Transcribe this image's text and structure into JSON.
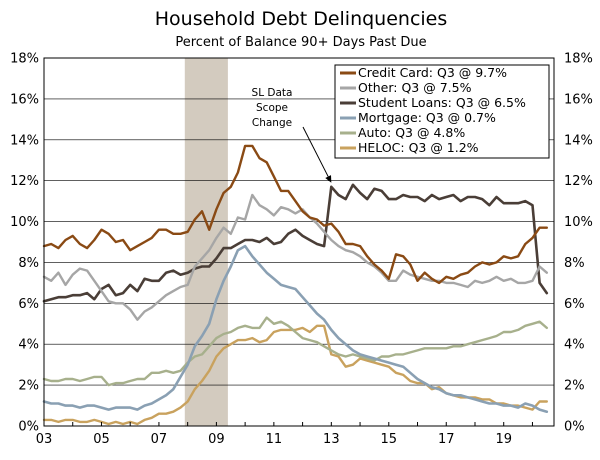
{
  "chart_data": {
    "type": "line",
    "title": "Household Debt Delinquencies",
    "subtitle": "Percent of Balance 90+ Days Past Due",
    "xlim": [
      2003.0,
      2020.75
    ],
    "ylim": [
      0,
      18
    ],
    "y_ticks": [
      0,
      2,
      4,
      6,
      8,
      10,
      12,
      14,
      16,
      18
    ],
    "y_tick_labels": [
      "0%",
      "2%",
      "4%",
      "6%",
      "8%",
      "10%",
      "12%",
      "14%",
      "16%",
      "18%"
    ],
    "x_ticks": [
      2003,
      2005,
      2007,
      2009,
      2011,
      2013,
      2015,
      2017,
      2019
    ],
    "x_tick_labels": [
      "03",
      "05",
      "07",
      "09",
      "11",
      "13",
      "15",
      "17",
      "19"
    ],
    "recession": [
      2007.9,
      2009.4
    ],
    "annotation": {
      "lines": [
        "SL Data",
        "Scope",
        "Change"
      ],
      "arrow_to": [
        2013.0,
        11.7
      ]
    },
    "legend_position": "top-right",
    "series": [
      {
        "name": "Credit Card",
        "legend": "Credit Card: Q3 @ 9.7%",
        "color": "#8a4a14",
        "width": 2.4,
        "x": [
          2003.0,
          2003.25,
          2003.5,
          2003.75,
          2004.0,
          2004.25,
          2004.5,
          2004.75,
          2005.0,
          2005.25,
          2005.5,
          2005.75,
          2006.0,
          2006.25,
          2006.5,
          2006.75,
          2007.0,
          2007.25,
          2007.5,
          2007.75,
          2008.0,
          2008.25,
          2008.5,
          2008.75,
          2009.0,
          2009.25,
          2009.5,
          2009.75,
          2010.0,
          2010.25,
          2010.5,
          2010.75,
          2011.0,
          2011.25,
          2011.5,
          2011.75,
          2012.0,
          2012.25,
          2012.5,
          2012.75,
          2013.0,
          2013.25,
          2013.5,
          2013.75,
          2014.0,
          2014.25,
          2014.5,
          2014.75,
          2015.0,
          2015.25,
          2015.5,
          2015.75,
          2016.0,
          2016.25,
          2016.5,
          2016.75,
          2017.0,
          2017.25,
          2017.5,
          2017.75,
          2018.0,
          2018.25,
          2018.5,
          2018.75,
          2019.0,
          2019.25,
          2019.5,
          2019.75,
          2020.0,
          2020.25,
          2020.5
        ],
        "y": [
          8.8,
          8.9,
          8.7,
          9.1,
          9.3,
          8.9,
          8.7,
          9.1,
          9.6,
          9.4,
          9.0,
          9.1,
          8.6,
          8.8,
          9.0,
          9.2,
          9.6,
          9.6,
          9.4,
          9.4,
          9.5,
          10.1,
          10.5,
          9.6,
          10.6,
          11.4,
          11.7,
          12.4,
          13.7,
          13.7,
          13.1,
          12.9,
          12.2,
          11.5,
          11.5,
          11.0,
          10.5,
          10.2,
          10.1,
          9.8,
          9.9,
          9.5,
          8.9,
          8.9,
          8.8,
          8.3,
          7.9,
          7.6,
          7.2,
          8.4,
          8.3,
          7.9,
          7.1,
          7.5,
          7.2,
          7.0,
          7.3,
          7.2,
          7.4,
          7.5,
          7.8,
          8.0,
          7.9,
          8.0,
          8.3,
          8.2,
          8.3,
          8.9,
          9.2,
          9.7,
          9.7
        ]
      },
      {
        "name": "Other",
        "legend": "Other: Q3 @ 7.5%",
        "color": "#a6a6a6",
        "width": 2.4,
        "x": [
          2003.0,
          2003.25,
          2003.5,
          2003.75,
          2004.0,
          2004.25,
          2004.5,
          2004.75,
          2005.0,
          2005.25,
          2005.5,
          2005.75,
          2006.0,
          2006.25,
          2006.5,
          2006.75,
          2007.0,
          2007.25,
          2007.5,
          2007.75,
          2008.0,
          2008.25,
          2008.5,
          2008.75,
          2009.0,
          2009.25,
          2009.5,
          2009.75,
          2010.0,
          2010.25,
          2010.5,
          2010.75,
          2011.0,
          2011.25,
          2011.5,
          2011.75,
          2012.0,
          2012.25,
          2012.5,
          2012.75,
          2013.0,
          2013.25,
          2013.5,
          2013.75,
          2014.0,
          2014.25,
          2014.5,
          2014.75,
          2015.0,
          2015.25,
          2015.5,
          2015.75,
          2016.0,
          2016.25,
          2016.5,
          2016.75,
          2017.0,
          2017.25,
          2017.5,
          2017.75,
          2018.0,
          2018.25,
          2018.5,
          2018.75,
          2019.0,
          2019.25,
          2019.5,
          2019.75,
          2020.0,
          2020.25,
          2020.5
        ],
        "y": [
          7.3,
          7.1,
          7.5,
          6.9,
          7.4,
          7.7,
          7.6,
          7.1,
          6.6,
          6.1,
          6.0,
          6.0,
          5.7,
          5.2,
          5.6,
          5.8,
          6.1,
          6.4,
          6.6,
          6.8,
          6.9,
          7.8,
          8.2,
          8.6,
          9.2,
          9.7,
          9.4,
          10.2,
          10.1,
          11.3,
          10.8,
          10.6,
          10.3,
          10.7,
          10.6,
          10.4,
          10.6,
          10.2,
          9.9,
          9.5,
          9.1,
          8.8,
          8.6,
          8.5,
          8.3,
          8.0,
          7.8,
          7.5,
          7.1,
          7.1,
          7.6,
          7.4,
          7.3,
          7.2,
          7.1,
          7.1,
          7.0,
          7.0,
          6.9,
          6.8,
          7.1,
          7.0,
          7.1,
          7.3,
          7.1,
          7.2,
          7.0,
          7.0,
          7.1,
          7.8,
          7.5
        ]
      },
      {
        "name": "Student Loans",
        "legend": "Student Loans: Q3 @ 6.5%",
        "color": "#4a3e37",
        "width": 2.6,
        "x": [
          2003.0,
          2003.25,
          2003.5,
          2003.75,
          2004.0,
          2004.25,
          2004.5,
          2004.75,
          2005.0,
          2005.25,
          2005.5,
          2005.75,
          2006.0,
          2006.25,
          2006.5,
          2006.75,
          2007.0,
          2007.25,
          2007.5,
          2007.75,
          2008.0,
          2008.25,
          2008.5,
          2008.75,
          2009.0,
          2009.25,
          2009.5,
          2009.75,
          2010.0,
          2010.25,
          2010.5,
          2010.75,
          2011.0,
          2011.25,
          2011.5,
          2011.75,
          2012.0,
          2012.25,
          2012.5,
          2012.75,
          2013.0,
          2013.25,
          2013.5,
          2013.75,
          2014.0,
          2014.25,
          2014.5,
          2014.75,
          2015.0,
          2015.25,
          2015.5,
          2015.75,
          2016.0,
          2016.25,
          2016.5,
          2016.75,
          2017.0,
          2017.25,
          2017.5,
          2017.75,
          2018.0,
          2018.25,
          2018.5,
          2018.75,
          2019.0,
          2019.25,
          2019.5,
          2019.75,
          2020.0,
          2020.25,
          2020.5
        ],
        "y": [
          6.1,
          6.2,
          6.3,
          6.3,
          6.4,
          6.4,
          6.5,
          6.2,
          6.7,
          6.9,
          6.4,
          6.5,
          6.9,
          6.6,
          7.2,
          7.1,
          7.1,
          7.5,
          7.6,
          7.4,
          7.5,
          7.7,
          7.8,
          7.8,
          8.2,
          8.7,
          8.7,
          8.9,
          9.1,
          9.1,
          9.0,
          9.2,
          8.9,
          9.0,
          9.4,
          9.6,
          9.3,
          9.1,
          8.9,
          8.8,
          11.7,
          11.3,
          11.1,
          11.8,
          11.4,
          11.1,
          11.6,
          11.5,
          11.1,
          11.1,
          11.3,
          11.2,
          11.2,
          11.0,
          11.3,
          11.1,
          11.2,
          11.3,
          11.0,
          11.2,
          11.2,
          11.1,
          10.8,
          11.2,
          10.9,
          10.9,
          10.9,
          11.0,
          10.8,
          7.0,
          6.5
        ]
      },
      {
        "name": "Mortgage",
        "legend": "Mortgage: Q3 @ 0.7%",
        "color": "#8aa0b3",
        "width": 2.6,
        "x": [
          2003.0,
          2003.25,
          2003.5,
          2003.75,
          2004.0,
          2004.25,
          2004.5,
          2004.75,
          2005.0,
          2005.25,
          2005.5,
          2005.75,
          2006.0,
          2006.25,
          2006.5,
          2006.75,
          2007.0,
          2007.25,
          2007.5,
          2007.75,
          2008.0,
          2008.25,
          2008.5,
          2008.75,
          2009.0,
          2009.25,
          2009.5,
          2009.75,
          2010.0,
          2010.25,
          2010.5,
          2010.75,
          2011.0,
          2011.25,
          2011.5,
          2011.75,
          2012.0,
          2012.25,
          2012.5,
          2012.75,
          2013.0,
          2013.25,
          2013.5,
          2013.75,
          2014.0,
          2014.25,
          2014.5,
          2014.75,
          2015.0,
          2015.25,
          2015.5,
          2015.75,
          2016.0,
          2016.25,
          2016.5,
          2016.75,
          2017.0,
          2017.25,
          2017.5,
          2017.75,
          2018.0,
          2018.25,
          2018.5,
          2018.75,
          2019.0,
          2019.25,
          2019.5,
          2019.75,
          2020.0,
          2020.25,
          2020.5
        ],
        "y": [
          1.2,
          1.1,
          1.1,
          1.0,
          1.0,
          0.9,
          1.0,
          1.0,
          0.9,
          0.8,
          0.9,
          0.9,
          0.9,
          0.8,
          1.0,
          1.1,
          1.3,
          1.5,
          1.8,
          2.4,
          3.0,
          3.9,
          4.4,
          5.0,
          6.2,
          7.1,
          7.8,
          8.6,
          8.8,
          8.3,
          7.9,
          7.5,
          7.2,
          6.9,
          6.8,
          6.7,
          6.3,
          5.9,
          5.5,
          5.2,
          4.7,
          4.3,
          4.0,
          3.7,
          3.5,
          3.4,
          3.3,
          3.2,
          3.1,
          3.0,
          2.9,
          2.6,
          2.3,
          2.1,
          1.9,
          1.8,
          1.6,
          1.5,
          1.5,
          1.4,
          1.3,
          1.2,
          1.1,
          1.1,
          1.0,
          1.0,
          0.9,
          1.1,
          1.0,
          0.8,
          0.7
        ]
      },
      {
        "name": "Auto",
        "legend": "Auto: Q3 @ 4.8%",
        "color": "#a7b08c",
        "width": 2.4,
        "x": [
          2003.0,
          2003.25,
          2003.5,
          2003.75,
          2004.0,
          2004.25,
          2004.5,
          2004.75,
          2005.0,
          2005.25,
          2005.5,
          2005.75,
          2006.0,
          2006.25,
          2006.5,
          2006.75,
          2007.0,
          2007.25,
          2007.5,
          2007.75,
          2008.0,
          2008.25,
          2008.5,
          2008.75,
          2009.0,
          2009.25,
          2009.5,
          2009.75,
          2010.0,
          2010.25,
          2010.5,
          2010.75,
          2011.0,
          2011.25,
          2011.5,
          2011.75,
          2012.0,
          2012.25,
          2012.5,
          2012.75,
          2013.0,
          2013.25,
          2013.5,
          2013.75,
          2014.0,
          2014.25,
          2014.5,
          2014.75,
          2015.0,
          2015.25,
          2015.5,
          2015.75,
          2016.0,
          2016.25,
          2016.5,
          2016.75,
          2017.0,
          2017.25,
          2017.5,
          2017.75,
          2018.0,
          2018.25,
          2018.5,
          2018.75,
          2019.0,
          2019.25,
          2019.5,
          2019.75,
          2020.0,
          2020.25,
          2020.5
        ],
        "y": [
          2.3,
          2.2,
          2.2,
          2.3,
          2.3,
          2.2,
          2.3,
          2.4,
          2.4,
          2.0,
          2.1,
          2.1,
          2.2,
          2.3,
          2.3,
          2.6,
          2.6,
          2.7,
          2.6,
          2.7,
          3.1,
          3.4,
          3.5,
          3.9,
          4.3,
          4.5,
          4.6,
          4.8,
          4.9,
          4.8,
          4.8,
          5.3,
          5.0,
          5.1,
          4.9,
          4.6,
          4.3,
          4.2,
          4.1,
          3.9,
          3.7,
          3.5,
          3.4,
          3.5,
          3.4,
          3.3,
          3.2,
          3.4,
          3.4,
          3.5,
          3.5,
          3.6,
          3.7,
          3.8,
          3.8,
          3.8,
          3.8,
          3.9,
          3.9,
          4.0,
          4.1,
          4.2,
          4.3,
          4.4,
          4.6,
          4.6,
          4.7,
          4.9,
          5.0,
          5.1,
          4.8
        ]
      },
      {
        "name": "HELOC",
        "legend": "HELOC: Q3 @ 1.2%",
        "color": "#c9a25e",
        "width": 2.4,
        "x": [
          2003.0,
          2003.25,
          2003.5,
          2003.75,
          2004.0,
          2004.25,
          2004.5,
          2004.75,
          2005.0,
          2005.25,
          2005.5,
          2005.75,
          2006.0,
          2006.25,
          2006.5,
          2006.75,
          2007.0,
          2007.25,
          2007.5,
          2007.75,
          2008.0,
          2008.25,
          2008.5,
          2008.75,
          2009.0,
          2009.25,
          2009.5,
          2009.75,
          2010.0,
          2010.25,
          2010.5,
          2010.75,
          2011.0,
          2011.25,
          2011.5,
          2011.75,
          2012.0,
          2012.25,
          2012.5,
          2012.75,
          2013.0,
          2013.25,
          2013.5,
          2013.75,
          2014.0,
          2014.25,
          2014.5,
          2014.75,
          2015.0,
          2015.25,
          2015.5,
          2015.75,
          2016.0,
          2016.25,
          2016.5,
          2016.75,
          2017.0,
          2017.25,
          2017.5,
          2017.75,
          2018.0,
          2018.25,
          2018.5,
          2018.75,
          2019.0,
          2019.25,
          2019.5,
          2019.75,
          2020.0,
          2020.25,
          2020.5
        ],
        "y": [
          0.3,
          0.3,
          0.2,
          0.3,
          0.3,
          0.2,
          0.2,
          0.3,
          0.2,
          0.1,
          0.2,
          0.1,
          0.2,
          0.1,
          0.3,
          0.4,
          0.6,
          0.6,
          0.7,
          0.9,
          1.2,
          1.8,
          2.2,
          2.7,
          3.4,
          3.8,
          4.0,
          4.2,
          4.2,
          4.3,
          4.1,
          4.2,
          4.6,
          4.7,
          4.7,
          4.7,
          4.8,
          4.6,
          4.9,
          4.9,
          3.5,
          3.4,
          2.9,
          3.0,
          3.3,
          3.2,
          3.1,
          3.0,
          2.9,
          2.6,
          2.5,
          2.2,
          2.1,
          2.1,
          1.8,
          1.9,
          1.6,
          1.5,
          1.4,
          1.4,
          1.4,
          1.3,
          1.3,
          1.1,
          1.1,
          1.0,
          1.0,
          0.9,
          0.8,
          1.2,
          1.2
        ]
      }
    ]
  }
}
